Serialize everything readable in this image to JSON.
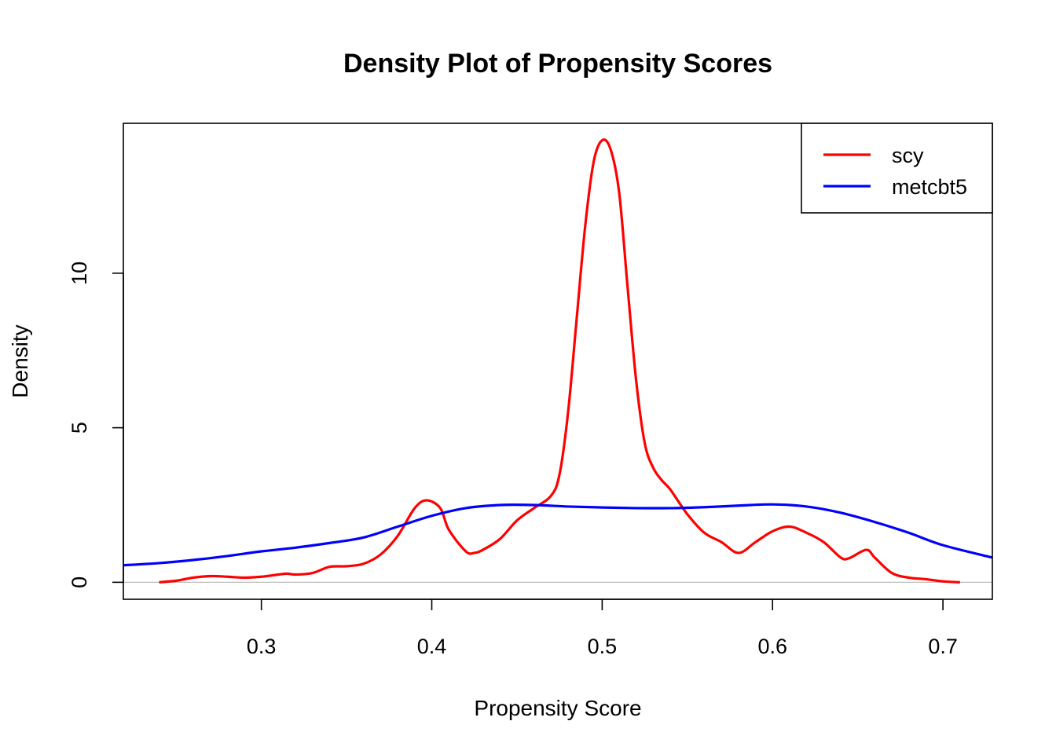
{
  "chart_data": {
    "type": "line",
    "title": "Density Plot of Propensity Scores",
    "xlabel": "Propensity Score",
    "ylabel": "Density",
    "xlim": [
      0.219,
      0.729
    ],
    "ylim": [
      -0.55,
      14.85
    ],
    "x_ticks": [
      0.3,
      0.4,
      0.5,
      0.6,
      0.7
    ],
    "x_tick_labels": [
      "0.3",
      "0.4",
      "0.5",
      "0.6",
      "0.7"
    ],
    "y_ticks": [
      0,
      5,
      10
    ],
    "y_tick_labels": [
      "0",
      "5",
      "10"
    ],
    "zero_line": true,
    "grid": false,
    "legend_position": "top-right",
    "series": [
      {
        "name": "scy",
        "color": "#ff0000",
        "x": [
          0.24,
          0.25,
          0.26,
          0.27,
          0.28,
          0.29,
          0.3,
          0.31,
          0.315,
          0.32,
          0.33,
          0.34,
          0.35,
          0.36,
          0.37,
          0.38,
          0.39,
          0.397,
          0.405,
          0.41,
          0.42,
          0.425,
          0.43,
          0.44,
          0.45,
          0.46,
          0.47,
          0.475,
          0.48,
          0.485,
          0.49,
          0.495,
          0.5,
          0.505,
          0.51,
          0.515,
          0.52,
          0.525,
          0.53,
          0.535,
          0.54,
          0.55,
          0.56,
          0.57,
          0.58,
          0.59,
          0.6,
          0.61,
          0.62,
          0.63,
          0.64,
          0.645,
          0.655,
          0.66,
          0.67,
          0.68,
          0.69,
          0.7,
          0.71
        ],
        "y": [
          0.0,
          0.05,
          0.15,
          0.2,
          0.18,
          0.15,
          0.18,
          0.25,
          0.28,
          0.25,
          0.3,
          0.5,
          0.52,
          0.6,
          0.9,
          1.5,
          2.4,
          2.65,
          2.4,
          1.7,
          1.0,
          0.95,
          1.05,
          1.4,
          2.0,
          2.4,
          2.8,
          3.5,
          5.5,
          8.5,
          11.5,
          13.6,
          14.3,
          14.0,
          12.6,
          9.5,
          6.5,
          4.5,
          3.7,
          3.3,
          3.0,
          2.2,
          1.6,
          1.3,
          0.95,
          1.3,
          1.65,
          1.8,
          1.6,
          1.3,
          0.8,
          0.78,
          1.05,
          0.8,
          0.3,
          0.15,
          0.1,
          0.03,
          0.0
        ]
      },
      {
        "name": "metcbt5",
        "color": "#0000ff",
        "x": [
          0.219,
          0.24,
          0.26,
          0.28,
          0.3,
          0.32,
          0.34,
          0.36,
          0.38,
          0.4,
          0.42,
          0.44,
          0.46,
          0.48,
          0.5,
          0.52,
          0.54,
          0.56,
          0.58,
          0.6,
          0.62,
          0.64,
          0.66,
          0.68,
          0.7,
          0.729
        ],
        "y": [
          0.55,
          0.62,
          0.72,
          0.85,
          1.0,
          1.12,
          1.27,
          1.45,
          1.8,
          2.15,
          2.4,
          2.5,
          2.5,
          2.45,
          2.42,
          2.4,
          2.4,
          2.43,
          2.48,
          2.52,
          2.45,
          2.25,
          1.95,
          1.6,
          1.2,
          0.8
        ]
      }
    ]
  }
}
